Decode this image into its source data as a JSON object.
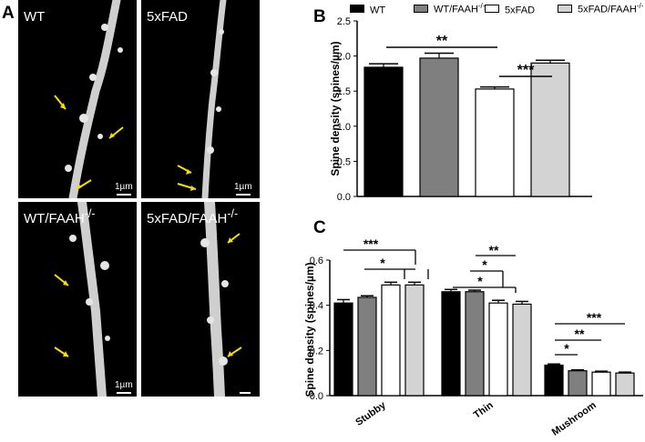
{
  "panels": {
    "a_letter": "A",
    "b_letter": "B",
    "c_letter": "C"
  },
  "micrographs": [
    {
      "label": "WT",
      "label_sup": "",
      "scale": "1µm"
    },
    {
      "label": "5xFAD",
      "label_sup": "",
      "scale": "1µm"
    },
    {
      "label": "WT/FAAH",
      "label_sup": "-/-",
      "scale": "1µm"
    },
    {
      "label": "5xFAD/FAAH",
      "label_sup": "-/-",
      "scale": ""
    }
  ],
  "legend": [
    {
      "label": "WT",
      "sup": "",
      "color": "#000000"
    },
    {
      "label": "WT/FAAH",
      "sup": "-/-",
      "color": "#7f7f7f"
    },
    {
      "label": "5xFAD",
      "sup": "",
      "color": "#ffffff"
    },
    {
      "label": "5xFAD/FAAH",
      "sup": "-/-",
      "color": "#d3d3d3"
    }
  ],
  "chart_data": [
    {
      "type": "bar",
      "panel": "B",
      "ylabel": "Spine density (spines/µm)",
      "ylim": [
        0,
        2.5
      ],
      "yticks": [
        "0.0",
        "0.5",
        "1.0",
        "1.5",
        "2.0",
        "2.5"
      ],
      "categories": [
        "WT",
        "WT/FAAH-/-",
        "5xFAD",
        "5xFAD/FAAH-/-"
      ],
      "values": [
        1.84,
        1.97,
        1.53,
        1.9
      ],
      "errors": [
        0.05,
        0.07,
        0.03,
        0.04
      ],
      "significance": [
        {
          "label": "**",
          "from": 0,
          "to": 2
        },
        {
          "label": "***",
          "from": 2,
          "to": 3
        }
      ]
    },
    {
      "type": "bar",
      "panel": "C",
      "ylabel": "Spine density (spines/µm)",
      "ylim": [
        0,
        0.6
      ],
      "yticks": [
        "0.0",
        "0.2",
        "0.4",
        "0.6"
      ],
      "categories": [
        "Stubby",
        "Thin",
        "Mushroom"
      ],
      "series": [
        {
          "values": [
            0.41,
            0.46,
            0.135
          ],
          "errors": [
            0.015,
            0.01,
            0.005
          ]
        },
        {
          "values": [
            0.435,
            0.46,
            0.11
          ],
          "errors": [
            0.007,
            0.007,
            0.004
          ]
        },
        {
          "values": [
            0.49,
            0.41,
            0.104
          ],
          "errors": [
            0.012,
            0.012,
            0.004
          ]
        },
        {
          "values": [
            0.49,
            0.405,
            0.1
          ],
          "errors": [
            0.012,
            0.012,
            0.004
          ]
        }
      ],
      "significance": [
        {
          "label": "***",
          "group": 0,
          "from": 0
        },
        {
          "label": "*",
          "group": 0,
          "from": 1
        },
        {
          "label": "**",
          "group": 1,
          "from": 0
        },
        {
          "label": "*",
          "group": 1,
          "from": 1
        },
        {
          "label": "*",
          "group": 1,
          "from": 0
        },
        {
          "label": "***",
          "group": 2,
          "from": 0
        },
        {
          "label": "**",
          "group": 2,
          "from": 0
        },
        {
          "label": "*",
          "group": 2,
          "from": 0
        }
      ]
    }
  ]
}
